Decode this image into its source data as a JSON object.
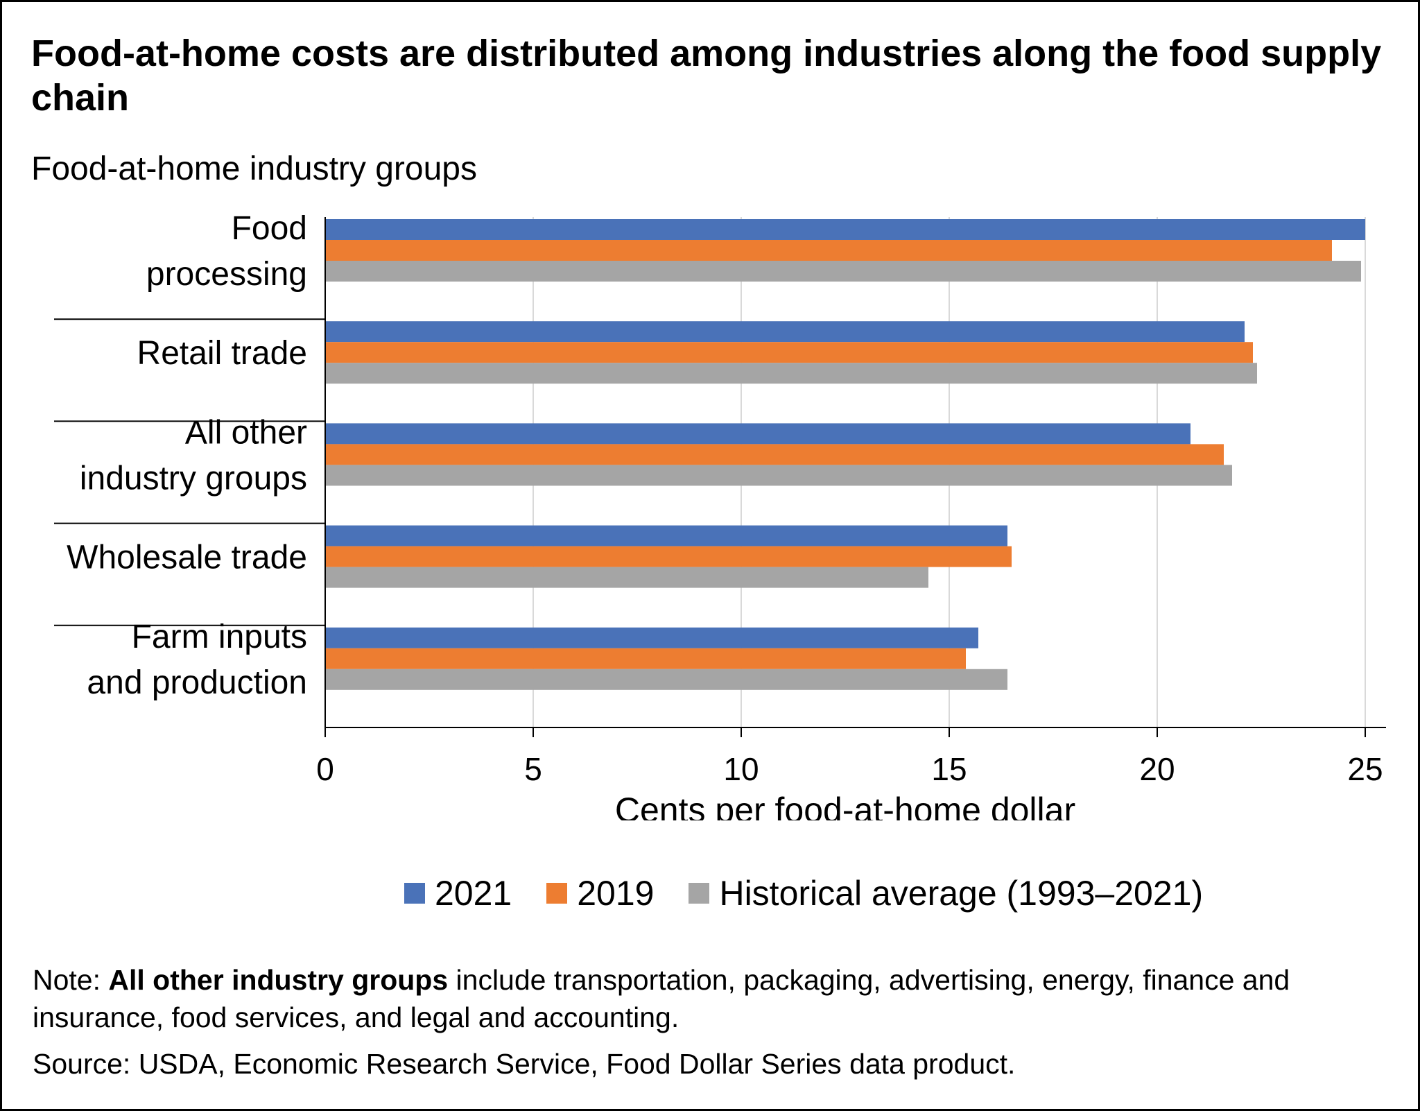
{
  "title": "Food-at-home costs are distributed among industries along the food supply chain",
  "subtitle": "Food-at-home industry groups",
  "note": {
    "prefix": "Note: ",
    "bold": "All other industry groups",
    "rest": " include transportation, packaging, advertising, energy, finance and insurance, food services, and legal and accounting."
  },
  "source": "Source: USDA, Economic Research Service, Food Dollar Series data product.",
  "colors": {
    "2021": "#4a72b8",
    "2019": "#ed7d31",
    "historical": "#a5a5a5"
  },
  "chart_data": {
    "type": "bar",
    "orientation": "horizontal",
    "categories": [
      [
        "Food",
        "processing"
      ],
      [
        "Retail trade"
      ],
      [
        "All other",
        "industry groups"
      ],
      [
        "Wholesale trade"
      ],
      [
        "Farm inputs",
        "and production"
      ]
    ],
    "series": [
      {
        "name": "2021",
        "color": "#4a72b8",
        "values": [
          25.0,
          22.1,
          20.8,
          16.4,
          15.7
        ]
      },
      {
        "name": "2019",
        "color": "#ed7d31",
        "values": [
          24.2,
          22.3,
          21.6,
          16.5,
          15.4
        ]
      },
      {
        "name": "Historical average (1993–2021)",
        "color": "#a5a5a5",
        "values": [
          24.9,
          22.4,
          21.8,
          14.5,
          16.4
        ]
      }
    ],
    "xlabel": "Cents per food-at-home dollar",
    "xlim": [
      0,
      25
    ],
    "xticks": [
      0,
      5,
      10,
      15,
      20,
      25
    ],
    "grid": true,
    "legend_position": "bottom"
  }
}
